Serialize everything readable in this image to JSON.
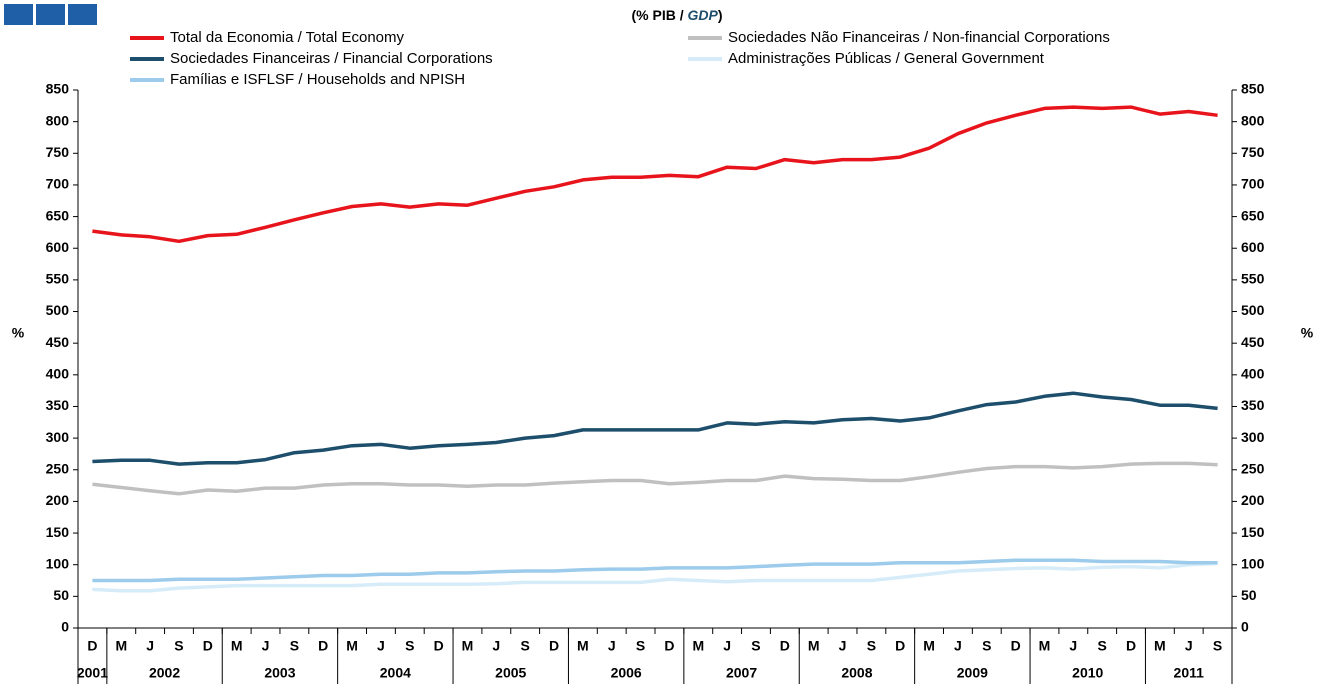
{
  "chart_data": {
    "type": "line",
    "title_parts": [
      "(% PIB / ",
      "GDP",
      ")"
    ],
    "ylabel": "%",
    "y2label": "%",
    "categories": [
      "D",
      "M",
      "J",
      "S",
      "D",
      "M",
      "J",
      "S",
      "D",
      "M",
      "J",
      "S",
      "D",
      "M",
      "J",
      "S",
      "D",
      "M",
      "J",
      "S",
      "D",
      "M",
      "J",
      "S",
      "D",
      "M",
      "J",
      "S",
      "D",
      "M",
      "J",
      "S",
      "D",
      "M",
      "J",
      "S",
      "D",
      "M",
      "J",
      "S"
    ],
    "years": [
      "2001",
      "2002",
      null,
      null,
      null,
      "2003",
      null,
      null,
      null,
      "2004",
      null,
      null,
      null,
      "2005",
      null,
      null,
      null,
      "2006",
      null,
      null,
      null,
      "2007",
      null,
      null,
      null,
      "2008",
      null,
      null,
      null,
      "2009",
      null,
      null,
      null,
      "2010",
      null,
      null,
      null,
      "2011",
      null,
      null
    ],
    "ylim": [
      0,
      850
    ],
    "yticks": [
      0,
      50,
      100,
      150,
      200,
      250,
      300,
      350,
      400,
      450,
      500,
      550,
      600,
      650,
      700,
      750,
      800,
      850
    ],
    "y2lim": [
      0,
      850
    ],
    "y2ticks": [
      0,
      50,
      100,
      150,
      200,
      250,
      300,
      350,
      400,
      450,
      500,
      550,
      600,
      650,
      700,
      750,
      800,
      850
    ],
    "series": [
      {
        "name": "Total da Economia / Total Economy",
        "color": "#e8141c",
        "values": [
          627,
          621,
          618,
          611,
          620,
          622,
          633,
          645,
          656,
          666,
          670,
          665,
          670,
          668,
          679,
          690,
          697,
          708,
          712,
          712,
          715,
          713,
          728,
          726,
          740,
          735,
          740,
          740,
          744,
          758,
          781,
          798,
          810,
          821,
          823,
          821,
          823,
          812,
          816,
          810
        ]
      },
      {
        "name": "Sociedades Não Financeiras / Non-financial Corporations",
        "color": "#c0c0c0",
        "values": [
          227,
          222,
          217,
          212,
          218,
          216,
          221,
          221,
          226,
          228,
          228,
          226,
          226,
          224,
          226,
          226,
          229,
          231,
          233,
          233,
          228,
          230,
          233,
          233,
          240,
          236,
          235,
          233,
          233,
          239,
          246,
          252,
          255,
          255,
          253,
          255,
          259,
          260,
          260,
          258
        ]
      },
      {
        "name": "Sociedades Financeiras / Financial Corporations",
        "color": "#1d4e6b",
        "values": [
          263,
          265,
          265,
          259,
          261,
          261,
          266,
          277,
          281,
          288,
          290,
          284,
          288,
          290,
          293,
          300,
          304,
          313,
          313,
          313,
          313,
          313,
          324,
          322,
          326,
          324,
          329,
          331,
          327,
          332,
          343,
          353,
          357,
          366,
          371,
          365,
          361,
          352,
          352,
          347
        ]
      },
      {
        "name": "Administrações Públicas / General Government",
        "color": "#d6ecf8",
        "values": [
          61,
          59,
          59,
          63,
          65,
          67,
          67,
          67,
          67,
          67,
          69,
          69,
          69,
          69,
          70,
          72,
          72,
          72,
          72,
          72,
          77,
          75,
          73,
          75,
          75,
          75,
          75,
          75,
          80,
          85,
          90,
          92,
          94,
          95,
          93,
          96,
          97,
          95,
          100,
          102
        ]
      },
      {
        "name": "Famílias e ISFLSF / Households and NPISH",
        "color": "#9ccbeb",
        "values": [
          75,
          75,
          75,
          77,
          77,
          77,
          79,
          81,
          83,
          83,
          85,
          85,
          87,
          87,
          89,
          90,
          90,
          92,
          93,
          93,
          95,
          95,
          95,
          97,
          99,
          101,
          101,
          101,
          103,
          103,
          103,
          105,
          107,
          107,
          107,
          105,
          105,
          105,
          103,
          103
        ]
      }
    ]
  }
}
